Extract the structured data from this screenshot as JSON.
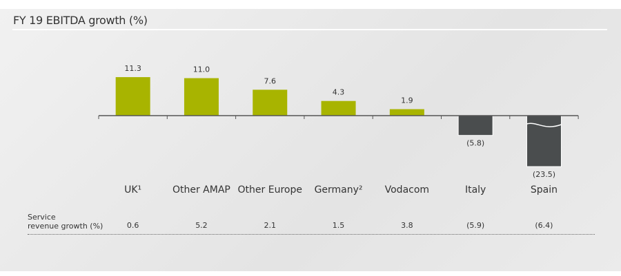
{
  "chart_data": {
    "type": "bar",
    "title": "FY 19 EBITDA growth (%)",
    "categories": [
      "UK¹",
      "Other AMAP",
      "Other Europe",
      "Germany²",
      "Vodacom",
      "Italy",
      "Spain"
    ],
    "values": [
      11.3,
      11.0,
      7.6,
      4.3,
      1.9,
      -5.8,
      -23.5
    ],
    "value_labels": [
      "11.3",
      "11.0",
      "7.6",
      "4.3",
      "1.9",
      "(5.8)",
      "(23.5)"
    ],
    "broken_axis_bars": [
      "Spain"
    ],
    "colors": {
      "positive": "#a8b400",
      "negative": "#4a4d4e"
    },
    "grid": false,
    "legend": "none"
  },
  "service_revenue": {
    "label_line1": "Service",
    "label_line2": "revenue growth (%)",
    "values": [
      "0.6",
      "5.2",
      "2.1",
      "1.5",
      "3.8",
      "(5.9)",
      "(6.4)"
    ]
  }
}
